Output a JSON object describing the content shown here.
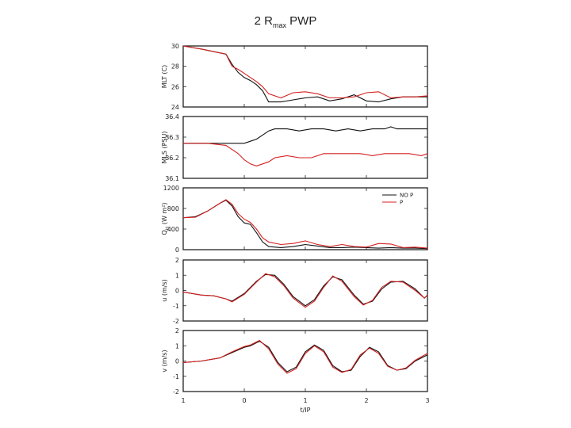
{
  "title": {
    "main": "2 R",
    "sub": "max",
    "rest": " PWP"
  },
  "colors": {
    "nop": "#111111",
    "p": "#d42020"
  },
  "chart_data": {
    "type": "line",
    "x_axis": {
      "label": "t/IP",
      "ticks": [
        -1,
        0,
        1,
        2,
        3
      ],
      "tick_labels": [
        "1",
        "0",
        "1",
        "2",
        "3"
      ],
      "range": [
        -1,
        3
      ]
    },
    "legend": {
      "placement": "top-right",
      "panel": 2,
      "entries": [
        "NO P",
        "P"
      ]
    },
    "panels": [
      {
        "ylabel_main": "MLT (C)",
        "ylabel_sub": "",
        "ylabel_rest": "",
        "ylim": [
          24,
          30
        ],
        "yticks": [
          24,
          26,
          28,
          30
        ],
        "ytick_labels": [
          "24",
          "26",
          "28",
          "30"
        ],
        "series": [
          {
            "key": "nop",
            "x": [
              -1,
              -0.7,
              -0.3,
              -0.2,
              -0.1,
              0,
              0.1,
              0.2,
              0.3,
              0.4,
              0.6,
              0.8,
              1.0,
              1.2,
              1.4,
              1.6,
              1.8,
              2.0,
              2.2,
              2.4,
              2.6,
              2.8,
              3.0
            ],
            "y": [
              30,
              29.7,
              29.2,
              28.2,
              27.4,
              26.9,
              26.6,
              26.2,
              25.6,
              24.5,
              24.5,
              24.7,
              24.9,
              25.0,
              24.6,
              24.8,
              25.2,
              24.6,
              24.5,
              24.8,
              25.0,
              25.0,
              25.0
            ]
          },
          {
            "key": "p",
            "x": [
              -1,
              -0.7,
              -0.3,
              -0.2,
              -0.1,
              0,
              0.1,
              0.2,
              0.3,
              0.4,
              0.6,
              0.8,
              1.0,
              1.2,
              1.4,
              1.6,
              1.8,
              2.0,
              2.2,
              2.4,
              2.6,
              2.8,
              3.0
            ],
            "y": [
              30,
              29.7,
              29.2,
              28.0,
              27.7,
              27.3,
              26.9,
              26.5,
              26.0,
              25.3,
              24.9,
              25.4,
              25.5,
              25.3,
              24.9,
              24.9,
              25.0,
              25.4,
              25.5,
              24.9,
              25.0,
              25.0,
              25.1
            ]
          }
        ]
      },
      {
        "ylabel_main": "MLS (PSU)",
        "ylabel_sub": "",
        "ylabel_rest": "",
        "ylim": [
          36.1,
          36.4
        ],
        "yticks": [
          36.1,
          36.2,
          36.3,
          36.4
        ],
        "ytick_labels": [
          "36.1",
          "36.2",
          "36.3",
          "36.4"
        ],
        "series": [
          {
            "key": "nop",
            "x": [
              -1,
              -0.5,
              0,
              0.1,
              0.2,
              0.3,
              0.4,
              0.5,
              0.7,
              0.9,
              1.1,
              1.3,
              1.5,
              1.7,
              1.9,
              2.1,
              2.3,
              2.4,
              2.5,
              2.6,
              2.8,
              3.0
            ],
            "y": [
              36.27,
              36.27,
              36.27,
              36.28,
              36.29,
              36.31,
              36.33,
              36.34,
              36.34,
              36.33,
              36.34,
              36.34,
              36.33,
              36.34,
              36.33,
              36.34,
              36.34,
              36.35,
              36.34,
              36.34,
              36.34,
              36.34
            ]
          },
          {
            "key": "p",
            "x": [
              -1,
              -0.6,
              -0.3,
              -0.1,
              0,
              0.1,
              0.2,
              0.3,
              0.4,
              0.5,
              0.7,
              0.9,
              1.1,
              1.3,
              1.5,
              1.7,
              1.9,
              2.1,
              2.3,
              2.5,
              2.7,
              2.9,
              3.0
            ],
            "y": [
              36.27,
              36.27,
              36.26,
              36.22,
              36.19,
              36.17,
              36.16,
              36.17,
              36.18,
              36.2,
              36.21,
              36.2,
              36.2,
              36.22,
              36.22,
              36.22,
              36.22,
              36.21,
              36.22,
              36.22,
              36.22,
              36.21,
              36.22
            ]
          }
        ]
      },
      {
        "ylabel_main": "Q",
        "ylabel_sub": "H",
        "ylabel_rest": " (W m²)",
        "ylim": [
          0,
          1200
        ],
        "yticks": [
          0,
          400,
          800,
          1200
        ],
        "ytick_labels": [
          "0",
          "400",
          "800",
          "1200"
        ],
        "series": [
          {
            "key": "nop",
            "x": [
              -1,
              -0.8,
              -0.6,
              -0.4,
              -0.3,
              -0.2,
              -0.1,
              0,
              0.1,
              0.2,
              0.3,
              0.4,
              0.6,
              0.8,
              1.0,
              1.2,
              1.4,
              1.6,
              1.8,
              2.0,
              2.2,
              2.4,
              2.6,
              2.8,
              3.0
            ],
            "y": [
              620,
              640,
              750,
              900,
              960,
              850,
              640,
              520,
              490,
              330,
              150,
              60,
              40,
              60,
              100,
              70,
              40,
              40,
              50,
              40,
              30,
              40,
              30,
              30,
              20
            ]
          },
          {
            "key": "p",
            "x": [
              -1,
              -0.8,
              -0.6,
              -0.4,
              -0.3,
              -0.2,
              -0.1,
              0,
              0.1,
              0.2,
              0.3,
              0.4,
              0.6,
              0.8,
              1.0,
              1.2,
              1.4,
              1.6,
              1.8,
              2.0,
              2.2,
              2.4,
              2.6,
              2.8,
              3.0
            ],
            "y": [
              620,
              630,
              750,
              900,
              970,
              880,
              700,
              590,
              530,
              400,
              230,
              150,
              100,
              120,
              170,
              100,
              60,
              100,
              60,
              50,
              120,
              110,
              40,
              50,
              30
            ]
          }
        ]
      },
      {
        "ylabel_main": "u (m/s)",
        "ylabel_sub": "",
        "ylabel_rest": "",
        "ylim": [
          -2,
          2
        ],
        "yticks": [
          -2,
          -1,
          0,
          1,
          2
        ],
        "ytick_labels": [
          "-2",
          "-1",
          "0",
          "1",
          "2"
        ],
        "series": [
          {
            "key": "nop",
            "x": [
              -1,
              -0.7,
              -0.5,
              -0.3,
              -0.2,
              0,
              0.2,
              0.35,
              0.5,
              0.65,
              0.8,
              1.0,
              1.15,
              1.3,
              1.45,
              1.6,
              1.8,
              1.95,
              2.1,
              2.25,
              2.4,
              2.6,
              2.8,
              2.95,
              3.0
            ],
            "y": [
              -0.1,
              -0.3,
              -0.35,
              -0.55,
              -0.7,
              -0.2,
              0.6,
              1.05,
              1.0,
              0.4,
              -0.4,
              -1.0,
              -0.6,
              0.3,
              0.9,
              0.7,
              -0.3,
              -0.9,
              -0.7,
              0.1,
              0.55,
              0.6,
              0.1,
              -0.5,
              -0.3
            ]
          },
          {
            "key": "p",
            "x": [
              -1,
              -0.7,
              -0.5,
              -0.3,
              -0.2,
              0,
              0.2,
              0.35,
              0.5,
              0.65,
              0.8,
              1.0,
              1.15,
              1.3,
              1.45,
              1.6,
              1.8,
              1.95,
              2.1,
              2.25,
              2.4,
              2.6,
              2.8,
              2.95,
              3.0
            ],
            "y": [
              -0.1,
              -0.3,
              -0.35,
              -0.55,
              -0.75,
              -0.25,
              0.55,
              1.1,
              0.9,
              0.3,
              -0.5,
              -1.1,
              -0.7,
              0.2,
              0.95,
              0.6,
              -0.4,
              -0.95,
              -0.65,
              0.2,
              0.6,
              0.55,
              0.0,
              -0.5,
              -0.3
            ]
          }
        ]
      },
      {
        "ylabel_main": "v (m/s)",
        "ylabel_sub": "",
        "ylabel_rest": "",
        "ylim": [
          -2,
          2
        ],
        "yticks": [
          -2,
          -1,
          0,
          1,
          2
        ],
        "ytick_labels": [
          "-2",
          "-1",
          "0",
          "1",
          "2"
        ],
        "series": [
          {
            "key": "nop",
            "x": [
              -1,
              -0.7,
              -0.4,
              -0.2,
              0,
              0.1,
              0.2,
              0.25,
              0.4,
              0.55,
              0.7,
              0.85,
              1.0,
              1.15,
              1.3,
              1.45,
              1.6,
              1.75,
              1.9,
              2.05,
              2.2,
              2.35,
              2.5,
              2.65,
              2.8,
              3.0
            ],
            "y": [
              -0.1,
              0.0,
              0.2,
              0.55,
              0.9,
              1.0,
              1.2,
              1.3,
              0.9,
              -0.1,
              -0.7,
              -0.4,
              0.6,
              1.05,
              0.7,
              -0.3,
              -0.7,
              -0.6,
              0.3,
              0.9,
              0.6,
              -0.3,
              -0.6,
              -0.5,
              0.0,
              0.4
            ]
          },
          {
            "key": "p",
            "x": [
              -1,
              -0.7,
              -0.4,
              -0.2,
              0,
              0.1,
              0.2,
              0.25,
              0.4,
              0.55,
              0.7,
              0.85,
              1.0,
              1.15,
              1.3,
              1.45,
              1.6,
              1.75,
              1.9,
              2.05,
              2.2,
              2.35,
              2.5,
              2.65,
              2.8,
              3.0
            ],
            "y": [
              -0.1,
              0.0,
              0.2,
              0.6,
              0.95,
              1.05,
              1.25,
              1.35,
              0.8,
              -0.2,
              -0.8,
              -0.5,
              0.5,
              1.0,
              0.6,
              -0.4,
              -0.75,
              -0.55,
              0.4,
              0.85,
              0.5,
              -0.35,
              -0.6,
              -0.45,
              0.05,
              0.5
            ]
          }
        ]
      }
    ]
  }
}
